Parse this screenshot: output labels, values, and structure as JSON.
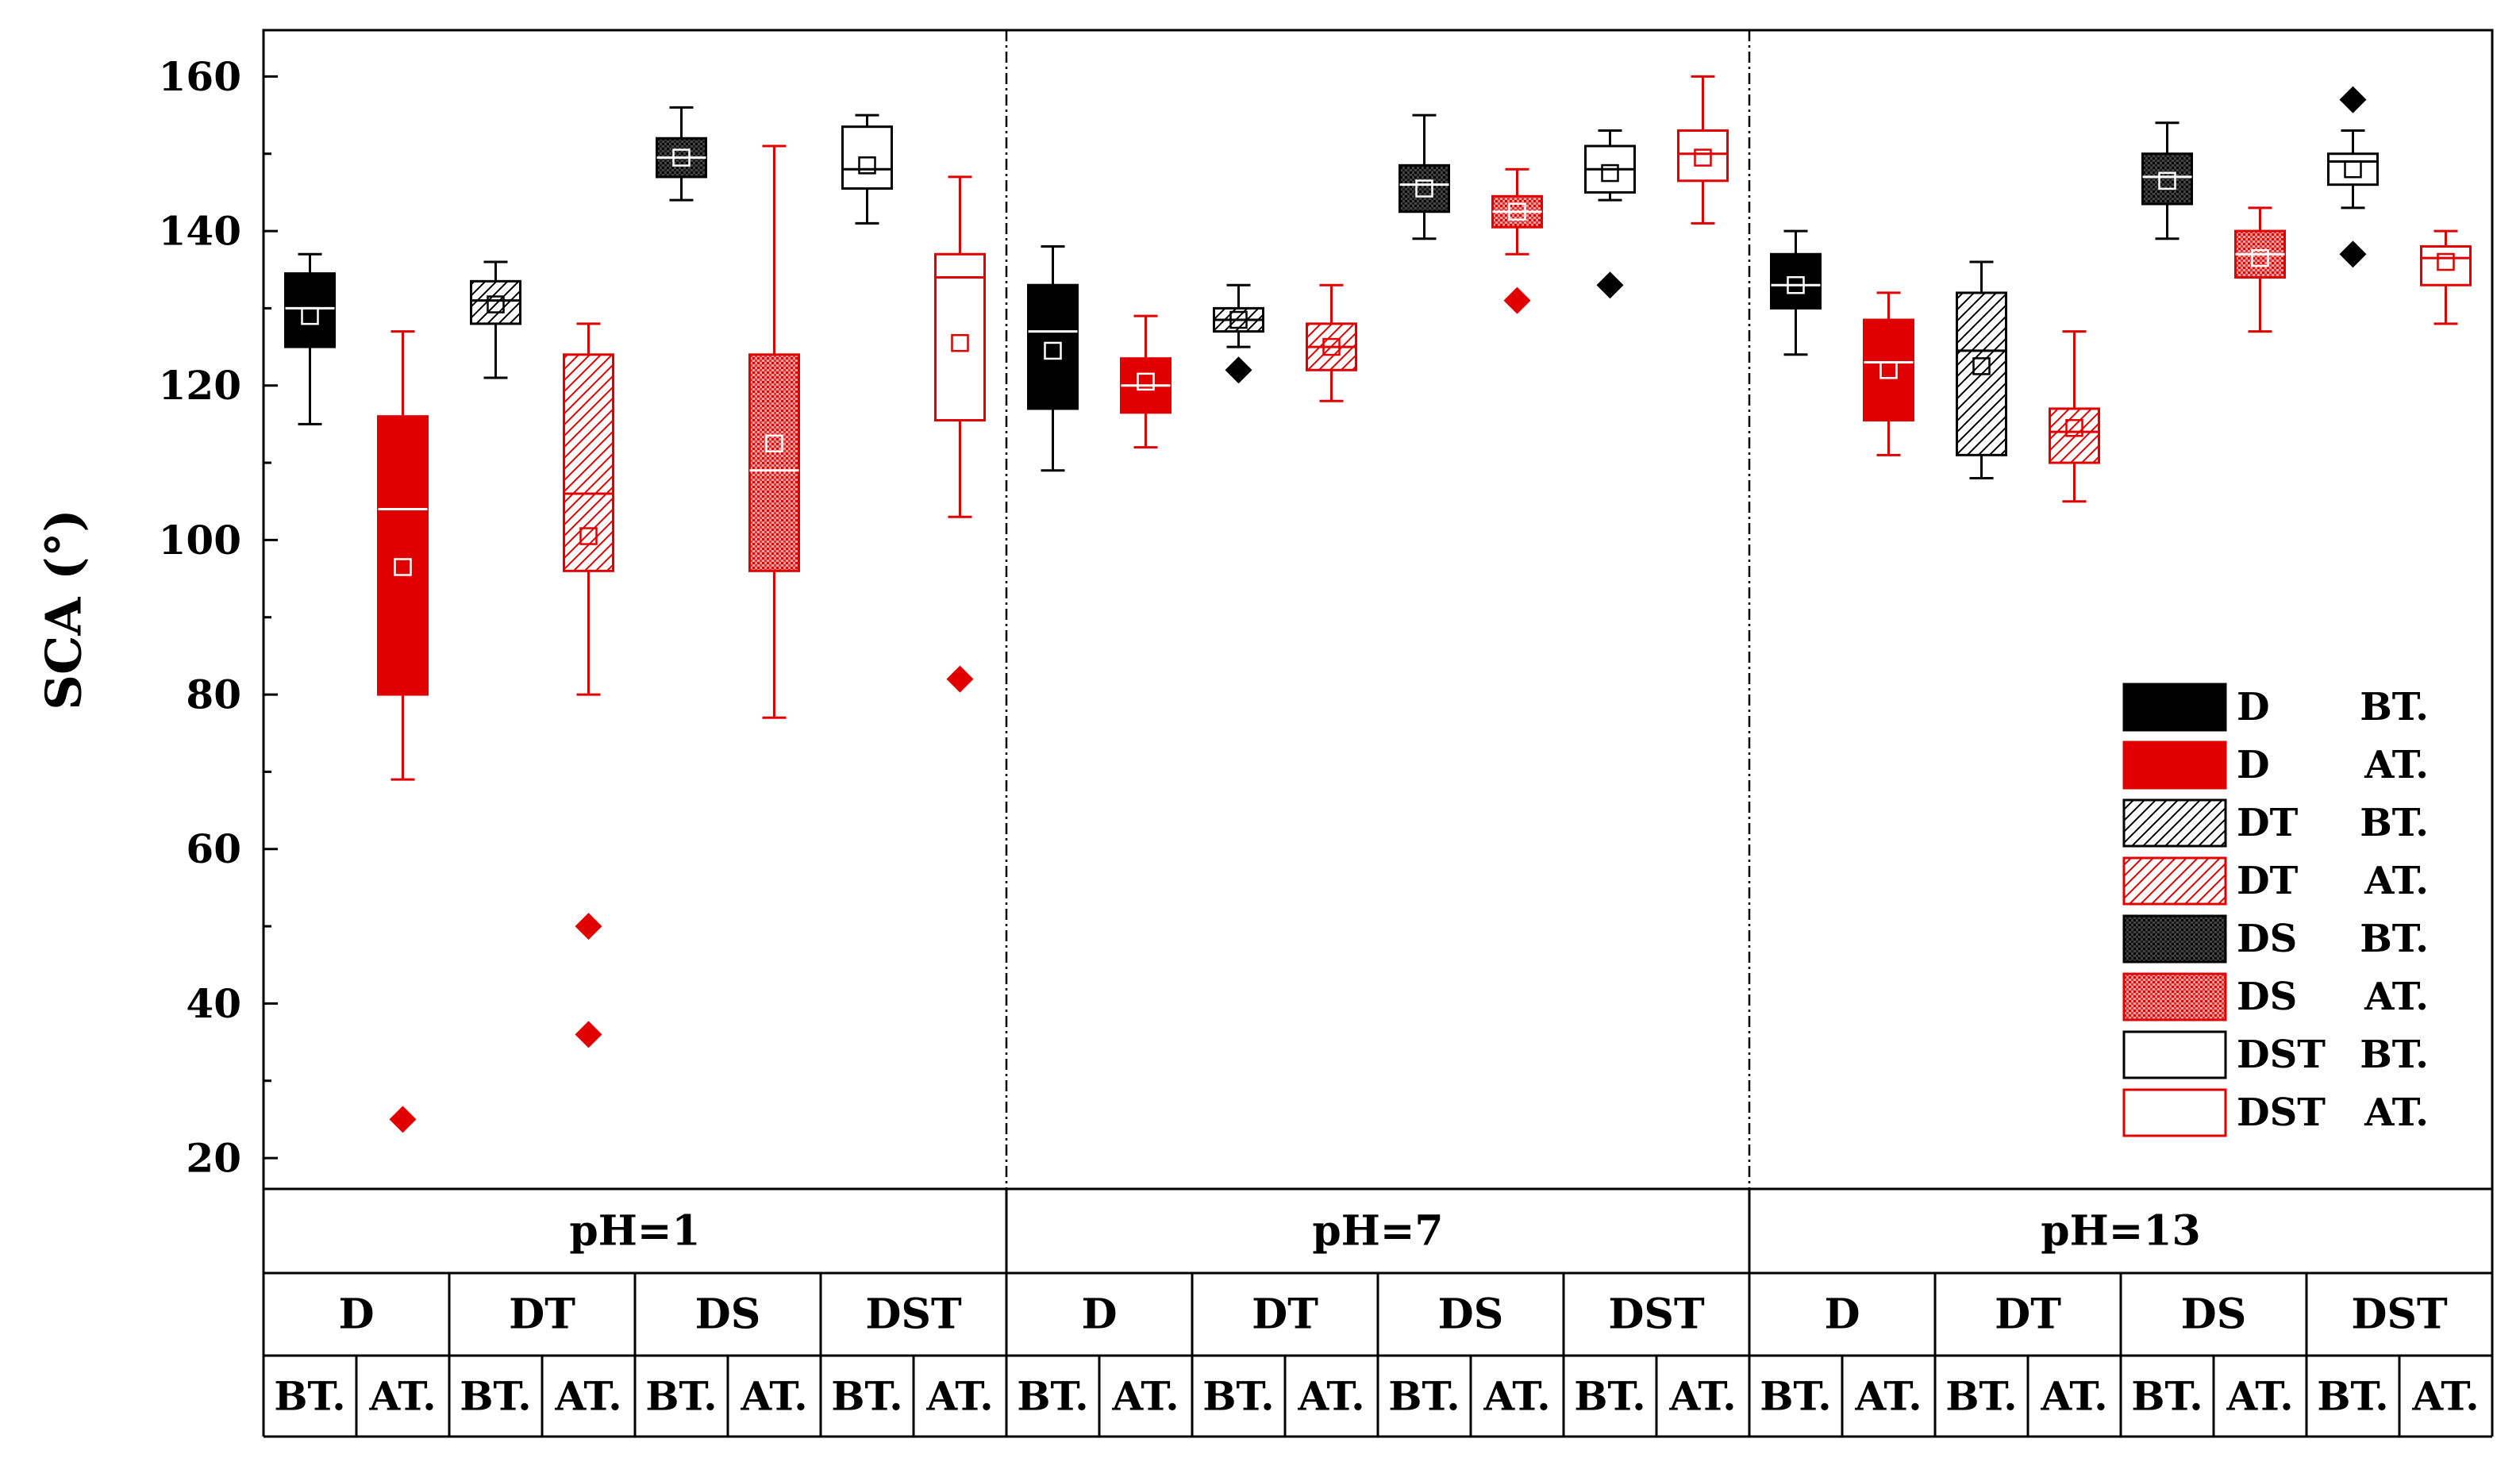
{
  "chart_data": {
    "type": "box",
    "ylabel": "SCA (°)",
    "ylim": [
      16,
      166
    ],
    "yticks": [
      20,
      40,
      60,
      80,
      100,
      120,
      140,
      160
    ],
    "yminor": [
      30,
      50,
      70,
      90,
      110,
      130,
      150
    ],
    "colors": {
      "BT": "#000000",
      "AT": "#e00000"
    },
    "groups": [
      {
        "label": "pH=1",
        "samples": [
          {
            "sample": "D",
            "boxes": [
              {
                "treat": "BT",
                "pattern": "solid",
                "q1": 125,
                "median": 130,
                "q3": 134.5,
                "mean": 129,
                "whisker_low": 115,
                "whisker_high": 137,
                "outliers": []
              },
              {
                "treat": "AT",
                "pattern": "solid",
                "q1": 80,
                "median": 104,
                "q3": 116,
                "mean": 96.5,
                "whisker_low": 69,
                "whisker_high": 127,
                "outliers": [
                  25
                ]
              }
            ]
          },
          {
            "sample": "DT",
            "boxes": [
              {
                "treat": "BT",
                "pattern": "hatch",
                "q1": 128,
                "median": 131,
                "q3": 133.5,
                "mean": 130.5,
                "whisker_low": 121,
                "whisker_high": 136,
                "outliers": []
              },
              {
                "treat": "AT",
                "pattern": "hatch",
                "q1": 96,
                "median": 106,
                "q3": 124,
                "mean": 100.5,
                "whisker_low": 80,
                "whisker_high": 128,
                "outliers": [
                  50,
                  36
                ]
              }
            ]
          },
          {
            "sample": "DS",
            "boxes": [
              {
                "treat": "BT",
                "pattern": "dots",
                "q1": 147,
                "median": 149.5,
                "q3": 152,
                "mean": 149.5,
                "whisker_low": 144,
                "whisker_high": 156,
                "outliers": []
              },
              {
                "treat": "AT",
                "pattern": "dots",
                "q1": 96,
                "median": 109,
                "q3": 124,
                "mean": 112.5,
                "whisker_low": 77,
                "whisker_high": 151,
                "outliers": []
              }
            ]
          },
          {
            "sample": "DST",
            "boxes": [
              {
                "treat": "BT",
                "pattern": "open",
                "q1": 145.5,
                "median": 148,
                "q3": 153.5,
                "mean": 148.5,
                "whisker_low": 141,
                "whisker_high": 155,
                "outliers": []
              },
              {
                "treat": "AT",
                "pattern": "open",
                "q1": 115.5,
                "median": 134,
                "q3": 137,
                "mean": 125.5,
                "whisker_low": 103,
                "whisker_high": 147,
                "outliers": [
                  82
                ]
              }
            ]
          }
        ]
      },
      {
        "label": "pH=7",
        "samples": [
          {
            "sample": "D",
            "boxes": [
              {
                "treat": "BT",
                "pattern": "solid",
                "q1": 117,
                "median": 127,
                "q3": 133,
                "mean": 124.5,
                "whisker_low": 109,
                "whisker_high": 138,
                "outliers": []
              },
              {
                "treat": "AT",
                "pattern": "solid",
                "q1": 116.5,
                "median": 120,
                "q3": 123.5,
                "mean": 120.5,
                "whisker_low": 112,
                "whisker_high": 129,
                "outliers": []
              }
            ]
          },
          {
            "sample": "DT",
            "boxes": [
              {
                "treat": "BT",
                "pattern": "hatch",
                "q1": 127,
                "median": 128.5,
                "q3": 130,
                "mean": 128.5,
                "whisker_low": 125,
                "whisker_high": 133,
                "outliers": [
                  122
                ]
              },
              {
                "treat": "AT",
                "pattern": "hatch",
                "q1": 122,
                "median": 125,
                "q3": 128,
                "mean": 125,
                "whisker_low": 118,
                "whisker_high": 133,
                "outliers": []
              }
            ]
          },
          {
            "sample": "DS",
            "boxes": [
              {
                "treat": "BT",
                "pattern": "dots",
                "q1": 142.5,
                "median": 146,
                "q3": 148.5,
                "mean": 145.5,
                "whisker_low": 139,
                "whisker_high": 155,
                "outliers": []
              },
              {
                "treat": "AT",
                "pattern": "dots",
                "q1": 140.5,
                "median": 142.5,
                "q3": 144.5,
                "mean": 142.5,
                "whisker_low": 137,
                "whisker_high": 148,
                "outliers": [
                  131
                ]
              }
            ]
          },
          {
            "sample": "DST",
            "boxes": [
              {
                "treat": "BT",
                "pattern": "open",
                "q1": 145,
                "median": 148,
                "q3": 151,
                "mean": 147.5,
                "whisker_low": 144,
                "whisker_high": 153,
                "outliers": [
                  133
                ]
              },
              {
                "treat": "AT",
                "pattern": "open",
                "q1": 146.5,
                "median": 150,
                "q3": 153,
                "mean": 149.5,
                "whisker_low": 141,
                "whisker_high": 160,
                "outliers": []
              }
            ]
          }
        ]
      },
      {
        "label": "pH=13",
        "samples": [
          {
            "sample": "D",
            "boxes": [
              {
                "treat": "BT",
                "pattern": "solid",
                "q1": 130,
                "median": 133,
                "q3": 137,
                "mean": 133,
                "whisker_low": 124,
                "whisker_high": 140,
                "outliers": []
              },
              {
                "treat": "AT",
                "pattern": "solid",
                "q1": 115.5,
                "median": 123,
                "q3": 128.5,
                "mean": 122,
                "whisker_low": 111,
                "whisker_high": 132,
                "outliers": []
              }
            ]
          },
          {
            "sample": "DT",
            "boxes": [
              {
                "treat": "BT",
                "pattern": "hatch",
                "q1": 111,
                "median": 124.5,
                "q3": 132,
                "mean": 122.5,
                "whisker_low": 108,
                "whisker_high": 136,
                "outliers": []
              },
              {
                "treat": "AT",
                "pattern": "hatch",
                "q1": 110,
                "median": 114,
                "q3": 117,
                "mean": 114.5,
                "whisker_low": 105,
                "whisker_high": 127,
                "outliers": []
              }
            ]
          },
          {
            "sample": "DS",
            "boxes": [
              {
                "treat": "BT",
                "pattern": "dots",
                "q1": 143.5,
                "median": 147,
                "q3": 150,
                "mean": 146.5,
                "whisker_low": 139,
                "whisker_high": 154,
                "outliers": []
              },
              {
                "treat": "AT",
                "pattern": "dots",
                "q1": 134,
                "median": 137,
                "q3": 140,
                "mean": 136.5,
                "whisker_low": 127,
                "whisker_high": 143,
                "outliers": []
              }
            ]
          },
          {
            "sample": "DST",
            "boxes": [
              {
                "treat": "BT",
                "pattern": "open",
                "q1": 146,
                "median": 149,
                "q3": 150,
                "mean": 148,
                "whisker_low": 143,
                "whisker_high": 153,
                "outliers": [
                  157,
                  137
                ]
              },
              {
                "treat": "AT",
                "pattern": "open",
                "q1": 133,
                "median": 136.5,
                "q3": 138,
                "mean": 136,
                "whisker_low": 128,
                "whisker_high": 140,
                "outliers": []
              }
            ]
          }
        ]
      }
    ],
    "legend": {
      "position": "bottom-right",
      "entries": [
        {
          "sample": "D",
          "treat": "BT.",
          "pattern": "solid",
          "color": "#000000"
        },
        {
          "sample": "D",
          "treat": "AT.",
          "pattern": "solid",
          "color": "#e00000"
        },
        {
          "sample": "DT",
          "treat": "BT.",
          "pattern": "hatch",
          "color": "#000000"
        },
        {
          "sample": "DT",
          "treat": "AT.",
          "pattern": "hatch",
          "color": "#e00000"
        },
        {
          "sample": "DS",
          "treat": "BT.",
          "pattern": "dots",
          "color": "#000000"
        },
        {
          "sample": "DS",
          "treat": "AT.",
          "pattern": "dots",
          "color": "#e00000"
        },
        {
          "sample": "DST",
          "treat": "BT.",
          "pattern": "open",
          "color": "#000000"
        },
        {
          "sample": "DST",
          "treat": "AT.",
          "pattern": "open",
          "color": "#e00000"
        }
      ]
    },
    "table": {
      "ph_labels": [
        "pH=1",
        "pH=7",
        "pH=13"
      ],
      "sample_labels": [
        "D",
        "DT",
        "DS",
        "DST"
      ],
      "treat_labels": [
        "BT.",
        "AT."
      ]
    }
  }
}
